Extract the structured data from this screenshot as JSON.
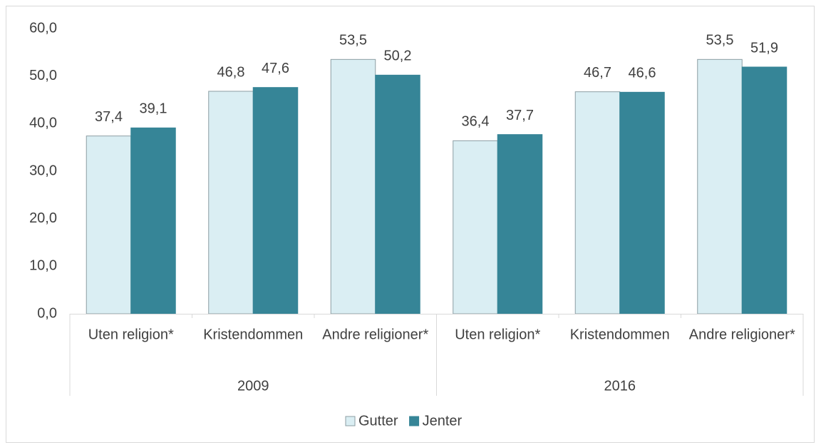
{
  "chart_data": {
    "type": "bar",
    "categories": [
      "Uten religion*",
      "Kristendommen",
      "Andre religioner*",
      "Uten religion*",
      "Kristendommen",
      "Andre religioner*"
    ],
    "groups": [
      "2009",
      "2016"
    ],
    "series": [
      {
        "name": "Gutter",
        "color": "#daeef3",
        "values": [
          37.4,
          46.8,
          53.5,
          36.4,
          46.7,
          53.5
        ],
        "value_labels": [
          "37,4",
          "46,8",
          "53,5",
          "36,4",
          "46,7",
          "53,5"
        ]
      },
      {
        "name": "Jenter",
        "color": "#368597",
        "values": [
          39.1,
          47.6,
          50.2,
          37.7,
          46.6,
          51.9
        ],
        "value_labels": [
          "39,1",
          "47,6",
          "50,2",
          "37,7",
          "46,6",
          "51,9"
        ]
      }
    ],
    "ylim": [
      0,
      60
    ],
    "yticks": [
      {
        "value": 0,
        "label": "0,0"
      },
      {
        "value": 10,
        "label": "10,0"
      },
      {
        "value": 20,
        "label": "20,0"
      },
      {
        "value": 30,
        "label": "30,0"
      },
      {
        "value": 40,
        "label": "40,0"
      },
      {
        "value": 50,
        "label": "50,0"
      },
      {
        "value": 60,
        "label": "60,0"
      }
    ],
    "grid": false,
    "legend": "bottom"
  }
}
